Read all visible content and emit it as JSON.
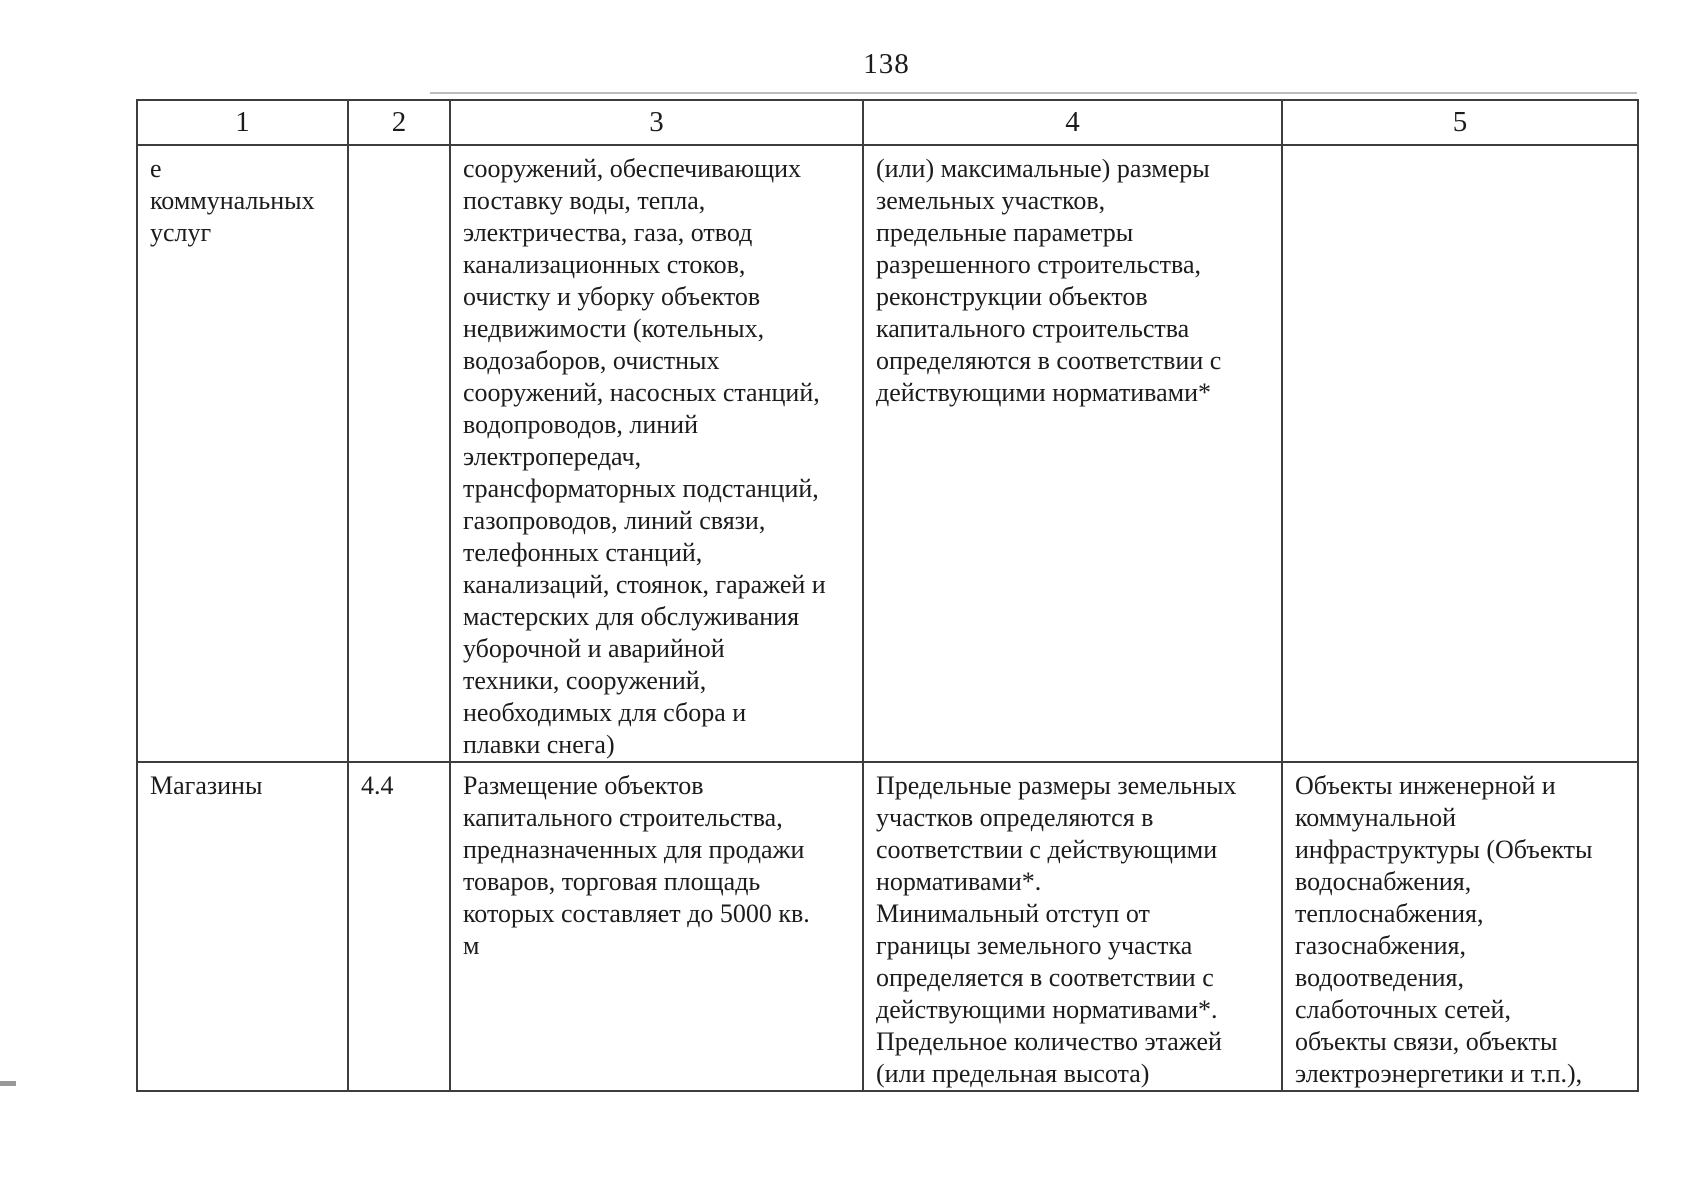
{
  "page": {
    "number": "138"
  },
  "colors": {
    "background": "#ffffff",
    "text": "#1c1c1c",
    "table_border": "#3d3d3d"
  },
  "table": {
    "header": [
      "1",
      "2",
      "3",
      "4",
      "5"
    ],
    "rows": [
      {
        "col1": "е\nкоммунальных\nуслуг",
        "col2": "",
        "col3": "сооружений, обеспечивающих\nпоставку воды, тепла,\nэлектричества, газа, отвод\nканализационных стоков,\nочистку и уборку объектов\nнедвижимости (котельных,\nводозаборов, очистных\nсооружений, насосных станций,\nводопроводов, линий\nэлектропередач,\nтрансформаторных подстанций,\nгазопроводов, линий связи,\nтелефонных станций,\nканализаций, стоянок, гаражей и\nмастерских для обслуживания\nуборочной и аварийной\nтехники, сооружений,\nнеобходимых для сбора и\nплавки снега)",
        "col4": "(или) максимальные) размеры\nземельных участков,\nпредельные параметры\nразрешенного строительства,\nреконструкции объектов\nкапитального строительства\nопределяются в соответствии с\nдействующими нормативами*",
        "col5": ""
      },
      {
        "col1": "Магазины",
        "col2": "4.4",
        "col3": "Размещение объектов\nкапитального строительства,\nпредназначенных для продажи\nтоваров, торговая площадь\nкоторых составляет до 5000 кв.\nм",
        "col4": "Предельные размеры земельных\nучастков определяются в\nсоответствии с действующими\nнормативами*.\nМинимальный отступ от\nграницы земельного участка\nопределяется в соответствии с\nдействующими нормативами*.\nПредельное количество этажей\n(или предельная высота)",
        "col5": "Объекты инженерной и\nкоммунальной\nинфраструктуры (Объекты\nводоснабжения,\nтеплоснабжения,\nгазоснабжения,\nводоотведения,\nслаботочных сетей,\nобъекты связи, объекты\nэлектроэнергетики и т.п.),"
      }
    ]
  }
}
